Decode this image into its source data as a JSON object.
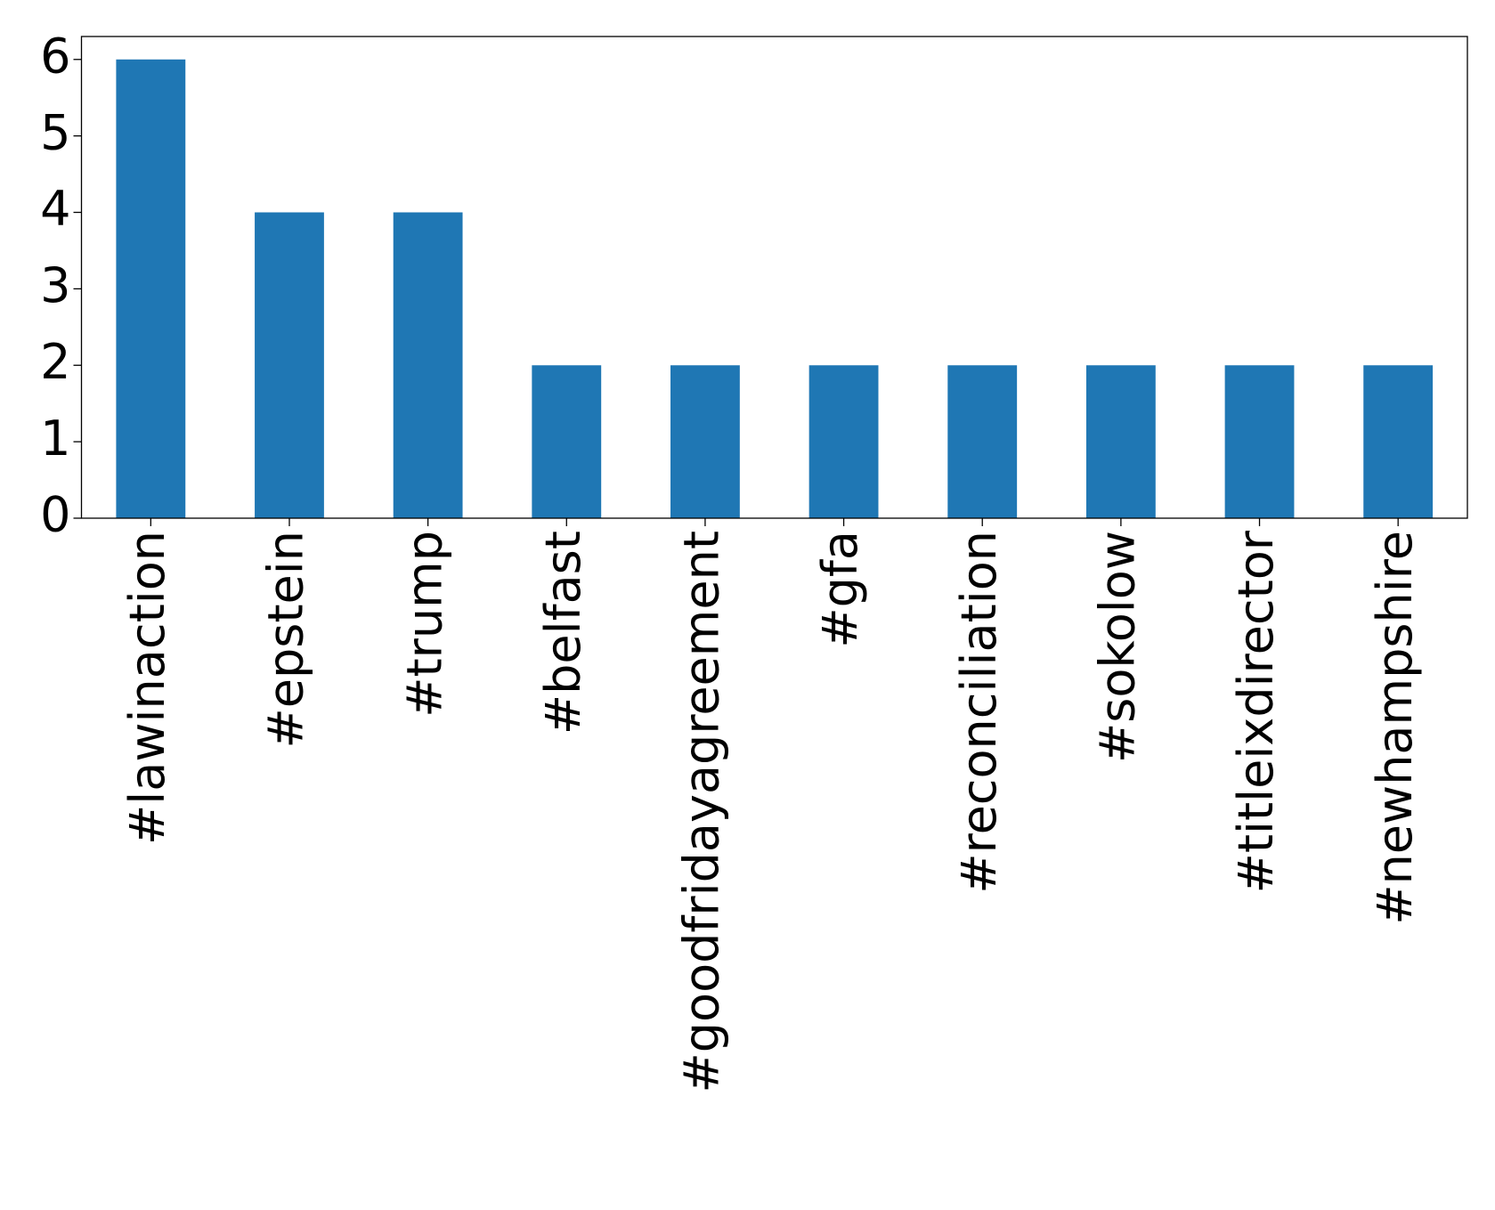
{
  "chart_data": {
    "type": "bar",
    "categories": [
      "#lawinaction",
      "#epstein",
      "#trump",
      "#belfast",
      "#goodfridayagreement",
      "#gfa",
      "#reconciliation",
      "#sokolow",
      "#titleixdirector",
      "#newhampshire"
    ],
    "values": [
      6,
      4,
      4,
      2,
      2,
      2,
      2,
      2,
      2,
      2
    ],
    "color": "#1f77b4",
    "ylim": [
      0,
      6.3
    ],
    "yticks": [
      0,
      1,
      2,
      3,
      4,
      5,
      6
    ],
    "grid": false
  }
}
